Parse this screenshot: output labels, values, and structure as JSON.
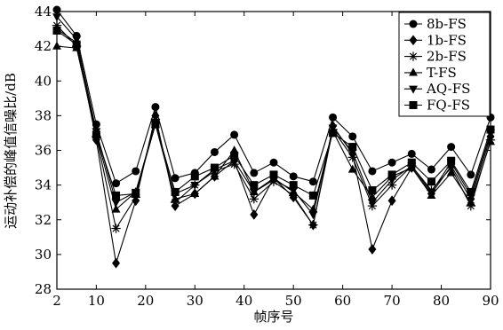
{
  "chart_data": {
    "type": "line",
    "xlabel": "帧序号",
    "ylabel": "运动补偿的峰值信噪比/dB",
    "xlim": [
      2,
      90
    ],
    "ylim": [
      28,
      44
    ],
    "xticks": [
      2,
      10,
      20,
      30,
      40,
      50,
      60,
      70,
      80,
      90
    ],
    "yticks": [
      28,
      30,
      32,
      34,
      36,
      38,
      40,
      42,
      44
    ],
    "x": [
      2,
      6,
      10,
      14,
      18,
      22,
      26,
      30,
      34,
      38,
      42,
      46,
      50,
      54,
      58,
      62,
      66,
      70,
      74,
      78,
      82,
      86,
      90
    ],
    "legend_position": "top-right",
    "series": [
      {
        "name": "8b-FS",
        "marker": "circle",
        "values": [
          44.1,
          42.6,
          37.5,
          34.1,
          34.8,
          38.5,
          34.4,
          34.7,
          35.9,
          36.9,
          34.7,
          35.3,
          34.5,
          34.2,
          37.9,
          36.8,
          34.8,
          35.3,
          35.8,
          34.9,
          36.2,
          34.6,
          37.9
        ]
      },
      {
        "name": "1b-FS",
        "marker": "diamond",
        "values": [
          43.0,
          42.2,
          36.6,
          29.5,
          33.1,
          38.0,
          32.8,
          33.5,
          34.5,
          35.4,
          32.3,
          34.4,
          33.3,
          31.7,
          37.4,
          35.8,
          30.3,
          33.1,
          35.0,
          33.5,
          35.1,
          33.2,
          36.8
        ]
      },
      {
        "name": "2b-FS",
        "marker": "asterisk",
        "values": [
          43.2,
          42.0,
          36.8,
          31.5,
          33.3,
          37.8,
          33.0,
          34.0,
          34.8,
          35.2,
          33.2,
          34.2,
          33.4,
          31.7,
          37.2,
          35.6,
          32.8,
          34.0,
          35.1,
          33.7,
          35.0,
          32.8,
          36.6
        ]
      },
      {
        "name": "T-FS",
        "marker": "triangle-up",
        "values": [
          42.0,
          41.9,
          36.9,
          32.6,
          33.6,
          37.5,
          33.2,
          33.5,
          34.5,
          36.0,
          33.6,
          34.4,
          33.6,
          32.6,
          37.1,
          34.9,
          33.3,
          34.5,
          35.0,
          33.4,
          34.7,
          33.0,
          36.5
        ]
      },
      {
        "name": "AQ-FS",
        "marker": "triangle-down",
        "values": [
          43.7,
          42.4,
          37.1,
          33.0,
          33.6,
          37.6,
          33.5,
          34.0,
          34.9,
          35.4,
          33.6,
          34.3,
          33.7,
          32.3,
          37.3,
          35.9,
          33.0,
          34.3,
          35.1,
          33.6,
          35.3,
          33.4,
          37.0
        ]
      },
      {
        "name": "FQ-FS",
        "marker": "square",
        "values": [
          42.9,
          42.1,
          36.9,
          33.4,
          33.5,
          37.5,
          33.6,
          34.5,
          35.0,
          35.7,
          34.0,
          34.6,
          34.0,
          33.4,
          37.0,
          36.2,
          33.7,
          34.6,
          35.3,
          34.2,
          35.4,
          33.6,
          37.2
        ]
      }
    ]
  }
}
